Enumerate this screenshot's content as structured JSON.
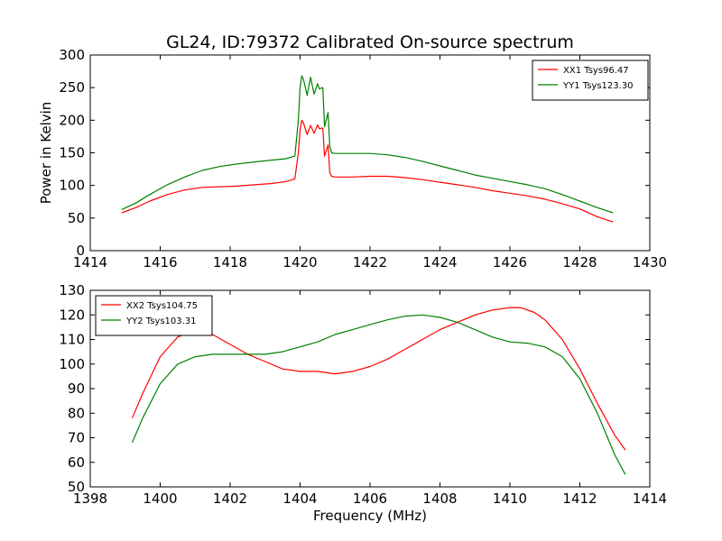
{
  "title": "GL24, ID:79372 Calibrated On-source spectrum",
  "xlabel": "Frequency (MHz)",
  "colors": {
    "red": "#ff0000",
    "green": "#008000",
    "axes": "#000000",
    "background": "#ffffff"
  },
  "chart_data": [
    {
      "type": "line",
      "title": "GL24, ID:79372 Calibrated On-source spectrum",
      "xlabel": "",
      "ylabel": "Power in Kelvin",
      "xlim": [
        1414,
        1430
      ],
      "ylim": [
        0,
        300
      ],
      "xticks": [
        1414,
        1416,
        1418,
        1420,
        1422,
        1424,
        1426,
        1428,
        1430
      ],
      "yticks": [
        0,
        50,
        100,
        150,
        200,
        250,
        300
      ],
      "grid": false,
      "legend_position": "top-right",
      "series": [
        {
          "name": "XX1 Tsys96.47",
          "color": "#ff0000",
          "x": [
            1414.9,
            1415.3,
            1415.7,
            1416.2,
            1416.7,
            1417.2,
            1417.7,
            1418.2,
            1418.7,
            1419.2,
            1419.6,
            1419.85,
            1419.95,
            1420.0,
            1420.05,
            1420.1,
            1420.2,
            1420.3,
            1420.4,
            1420.5,
            1420.55,
            1420.65,
            1420.7,
            1420.8,
            1420.85,
            1420.9,
            1421.0,
            1421.5,
            1422.0,
            1422.5,
            1423.0,
            1423.5,
            1424.0,
            1424.5,
            1425.0,
            1425.5,
            1426.0,
            1426.5,
            1427.0,
            1427.5,
            1428.0,
            1428.5,
            1428.95
          ],
          "y": [
            58,
            66,
            76,
            86,
            93,
            97,
            98,
            99,
            101,
            103,
            106,
            110,
            150,
            185,
            200,
            195,
            178,
            192,
            180,
            193,
            187,
            188,
            145,
            162,
            120,
            114,
            113,
            113,
            114,
            114,
            112,
            109,
            105,
            101,
            97,
            92,
            88,
            84,
            79,
            72,
            64,
            52,
            44
          ]
        },
        {
          "name": "YY1 Tsys123.30",
          "color": "#008000",
          "x": [
            1414.9,
            1415.3,
            1415.7,
            1416.2,
            1416.7,
            1417.2,
            1417.7,
            1418.2,
            1418.7,
            1419.2,
            1419.6,
            1419.85,
            1419.95,
            1420.0,
            1420.05,
            1420.1,
            1420.2,
            1420.3,
            1420.4,
            1420.5,
            1420.55,
            1420.65,
            1420.7,
            1420.8,
            1420.85,
            1420.9,
            1421.0,
            1421.5,
            1422.0,
            1422.5,
            1423.0,
            1423.5,
            1424.0,
            1424.5,
            1425.0,
            1425.5,
            1426.0,
            1426.5,
            1427.0,
            1427.5,
            1428.0,
            1428.5,
            1428.95
          ],
          "y": [
            63,
            73,
            86,
            101,
            113,
            123,
            129,
            133,
            136,
            139,
            141,
            145,
            200,
            250,
            268,
            262,
            238,
            266,
            240,
            256,
            248,
            250,
            190,
            212,
            160,
            150,
            149,
            149,
            149,
            147,
            143,
            137,
            130,
            123,
            116,
            111,
            106,
            101,
            95,
            86,
            76,
            66,
            58
          ]
        }
      ]
    },
    {
      "type": "line",
      "title": "",
      "xlabel": "Frequency (MHz)",
      "ylabel": "",
      "xlim": [
        1398,
        1414
      ],
      "ylim": [
        50,
        130
      ],
      "xticks": [
        1398,
        1400,
        1402,
        1404,
        1406,
        1408,
        1410,
        1412,
        1414
      ],
      "yticks": [
        50,
        60,
        70,
        80,
        90,
        100,
        110,
        120,
        130
      ],
      "grid": false,
      "legend_position": "top-left",
      "series": [
        {
          "name": "XX2 Tsys104.75",
          "color": "#ff0000",
          "x": [
            1399.2,
            1399.5,
            1400.0,
            1400.5,
            1401.0,
            1401.5,
            1402.0,
            1402.5,
            1403.0,
            1403.5,
            1404.0,
            1404.5,
            1405.0,
            1405.5,
            1406.0,
            1406.5,
            1407.0,
            1407.5,
            1408.0,
            1408.5,
            1409.0,
            1409.5,
            1410.0,
            1410.3,
            1410.7,
            1411.0,
            1411.5,
            1412.0,
            1412.5,
            1413.0,
            1413.3
          ],
          "y": [
            78,
            88,
            103,
            111,
            114,
            112,
            108,
            104,
            101,
            98,
            97,
            97,
            96,
            97,
            99,
            102,
            106,
            110,
            114,
            117,
            120,
            122,
            123,
            123,
            121,
            118,
            110,
            98,
            84,
            71,
            65
          ]
        },
        {
          "name": "YY2 Tsys103.31",
          "color": "#008000",
          "x": [
            1399.2,
            1399.5,
            1400.0,
            1400.5,
            1401.0,
            1401.5,
            1402.0,
            1402.5,
            1403.0,
            1403.5,
            1404.0,
            1404.5,
            1405.0,
            1405.5,
            1406.0,
            1406.5,
            1407.0,
            1407.5,
            1408.0,
            1408.5,
            1409.0,
            1409.5,
            1410.0,
            1410.5,
            1411.0,
            1411.5,
            1412.0,
            1412.5,
            1413.0,
            1413.3
          ],
          "y": [
            68,
            78,
            92,
            100,
            103,
            104,
            104,
            104,
            104,
            105,
            107,
            109,
            112,
            114,
            116,
            118,
            119.5,
            120,
            119,
            117,
            114,
            111,
            109,
            108.5,
            107,
            103,
            94,
            80,
            63,
            55
          ]
        }
      ]
    }
  ]
}
